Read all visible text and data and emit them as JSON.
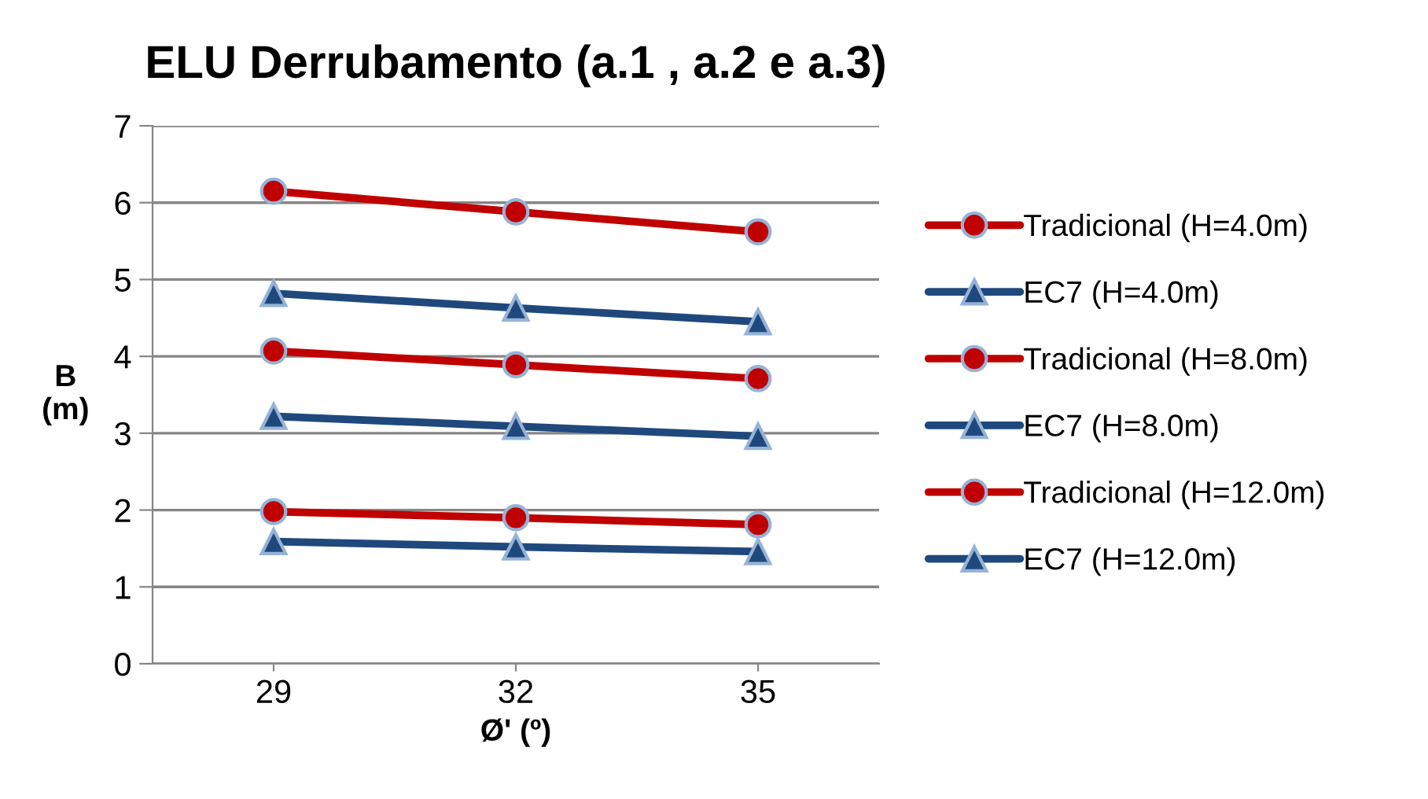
{
  "chart_data": {
    "type": "line",
    "title": "ELU Derrubamento (a.1 , a.2 e a.3)",
    "xlabel": "Ø' (º)",
    "ylabel": "B\n(m)",
    "categories": [
      "29",
      "32",
      "35"
    ],
    "series": [
      {
        "name": "Tradicional (H=4.0m)",
        "color": "#c00000",
        "marker": "circle",
        "values": [
          1.98,
          1.9,
          1.81
        ]
      },
      {
        "name": "EC7 (H=4.0m)",
        "color": "#1f497d",
        "marker": "triangle",
        "values": [
          1.59,
          1.52,
          1.46
        ]
      },
      {
        "name": "Tradicional (H=8.0m)",
        "color": "#c00000",
        "marker": "circle",
        "values": [
          4.07,
          3.89,
          3.71
        ]
      },
      {
        "name": "EC7 (H=8.0m)",
        "color": "#1f497d",
        "marker": "triangle",
        "values": [
          3.22,
          3.09,
          2.96
        ]
      },
      {
        "name": "Tradicional (H=12.0m)",
        "color": "#c00000",
        "marker": "circle",
        "values": [
          6.15,
          5.88,
          5.62
        ]
      },
      {
        "name": "EC7 (H=12.0m)",
        "color": "#1f497d",
        "marker": "triangle",
        "values": [
          4.82,
          4.63,
          4.45
        ]
      }
    ],
    "ylim": [
      0,
      7
    ],
    "yticks": [
      0,
      1,
      2,
      3,
      4,
      5,
      6,
      7
    ],
    "grid": "y",
    "legend": "right",
    "line_style": "solid"
  }
}
